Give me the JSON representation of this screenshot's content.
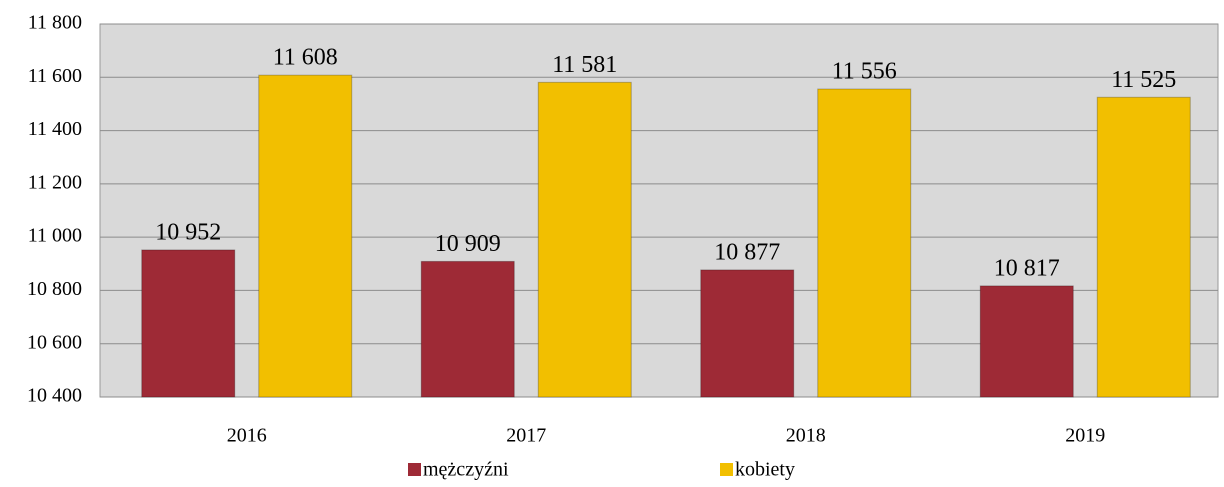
{
  "chart_data": {
    "type": "bar",
    "categories": [
      "2016",
      "2017",
      "2018",
      "2019"
    ],
    "series": [
      {
        "name": "mężczyźni",
        "color": "#9e2a36",
        "values": [
          10952,
          10909,
          10877,
          10817
        ],
        "value_labels": [
          "10 952",
          "10 909",
          "10 877",
          "10 817"
        ]
      },
      {
        "name": "kobiety",
        "color": "#f2bf00",
        "values": [
          11608,
          11581,
          11556,
          11525
        ],
        "value_labels": [
          "11 608",
          "11 581",
          "11 556",
          "11 525"
        ]
      }
    ],
    "ylim": [
      10400,
      11800
    ],
    "yticks": [
      {
        "value": 10400,
        "label": "10 400"
      },
      {
        "value": 10600,
        "label": "10 600"
      },
      {
        "value": 10800,
        "label": "10 800"
      },
      {
        "value": 11000,
        "label": "11 000"
      },
      {
        "value": 11200,
        "label": "11 200"
      },
      {
        "value": 11400,
        "label": "11 400"
      },
      {
        "value": 11600,
        "label": "11 600"
      },
      {
        "value": 11800,
        "label": "11 800"
      }
    ],
    "grid": true,
    "legend": "bottom"
  }
}
